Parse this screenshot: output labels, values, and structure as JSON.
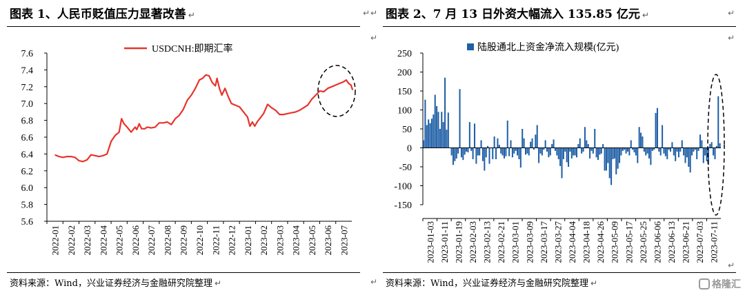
{
  "charts": [
    {
      "title": "图表 1、人民币贬值压力显著改善",
      "source": "资料来源：Wind，兴业证券经济与金融研究院整理",
      "chart_data": {
        "type": "line",
        "legend": "USDCNH:即期汇率",
        "legend_position": "top-center",
        "ylim": [
          5.6,
          7.6
        ],
        "yticks": [
          "5.6",
          "5.8",
          "6.0",
          "6.2",
          "6.4",
          "6.6",
          "6.8",
          "7.0",
          "7.2",
          "7.4",
          "7.6"
        ],
        "xticks": [
          "2022-01",
          "2022-02",
          "2022-03",
          "2022-04",
          "2022-05",
          "2022-06",
          "2022-07",
          "2022-08",
          "2022-09",
          "2022-10",
          "2022-11",
          "2022-12",
          "2023-01",
          "2023-02",
          "2023-03",
          "2023-04",
          "2023-05",
          "2023-06",
          "2023-07"
        ],
        "grid": false,
        "color": "#e8322b",
        "x": [
          0,
          0.25,
          0.5,
          0.75,
          1,
          1.25,
          1.5,
          1.75,
          2,
          2.25,
          2.5,
          2.75,
          3,
          3.25,
          3.5,
          3.75,
          4,
          4.15,
          4.3,
          4.5,
          4.75,
          5,
          5.1,
          5.25,
          5.4,
          5.6,
          5.75,
          6,
          6.25,
          6.5,
          6.75,
          7,
          7.25,
          7.5,
          7.75,
          8,
          8.25,
          8.5,
          8.75,
          9,
          9.2,
          9.4,
          9.6,
          9.8,
          10,
          10.1,
          10.25,
          10.4,
          10.6,
          10.8,
          11,
          11.25,
          11.5,
          11.75,
          12,
          12.15,
          12.3,
          12.45,
          12.6,
          12.8,
          13,
          13.25,
          13.5,
          13.75,
          14,
          14.25,
          14.5,
          14.75,
          15,
          15.25,
          15.5,
          15.75,
          16,
          16.25,
          16.5,
          16.75,
          17,
          17.25,
          17.5,
          17.75,
          18,
          18.15,
          18.3,
          18.45,
          18.55
        ],
        "y": [
          6.39,
          6.37,
          6.36,
          6.37,
          6.37,
          6.36,
          6.32,
          6.31,
          6.33,
          6.39,
          6.38,
          6.37,
          6.38,
          6.4,
          6.55,
          6.62,
          6.66,
          6.82,
          6.76,
          6.72,
          6.66,
          6.72,
          6.69,
          6.76,
          6.7,
          6.7,
          6.72,
          6.71,
          6.72,
          6.77,
          6.77,
          6.78,
          6.75,
          6.82,
          6.86,
          6.93,
          7.04,
          7.1,
          7.18,
          7.28,
          7.3,
          7.34,
          7.33,
          7.25,
          7.21,
          7.3,
          7.18,
          7.1,
          7.18,
          7.08,
          7.0,
          6.98,
          6.96,
          6.9,
          6.84,
          6.73,
          6.78,
          6.73,
          6.78,
          6.83,
          6.88,
          6.99,
          6.95,
          6.92,
          6.87,
          6.87,
          6.88,
          6.89,
          6.9,
          6.92,
          6.95,
          6.98,
          7.05,
          7.1,
          7.15,
          7.14,
          7.18,
          7.2,
          7.22,
          7.24,
          7.26,
          7.28,
          7.24,
          7.22,
          7.16
        ]
      },
      "annotation": "dashed-ellipse"
    },
    {
      "title": "图表 2、7 月 13 日外资大幅流入 135.85 亿元",
      "source": "资料来源：Wind，兴业证券经济与金融研究院整理",
      "chart_data": {
        "type": "bar",
        "series": [
          {
            "name": "陆股通北上资金净流入规模(亿元)"
          }
        ],
        "legend_position": "top-center",
        "ylim": [
          -150,
          250
        ],
        "yticks": [
          "-150",
          "-100",
          "-50",
          "0",
          "50",
          "100",
          "150",
          "200",
          "250"
        ],
        "xticks": [
          "2023-01-03",
          "2023-01-11",
          "2023-01-19",
          "2023-02-03",
          "2023-02-13",
          "2023-02-21",
          "2023-03-01",
          "2023-03-09",
          "2023-03-17",
          "2023-03-27",
          "2023-04-04",
          "2023-04-18",
          "2023-04-26",
          "2023-05-09",
          "2023-05-17",
          "2023-05-25",
          "2023-06-06",
          "2023-06-13",
          "2023-06-21",
          "2023-07-03",
          "2023-07-11"
        ],
        "grid": false,
        "color": "#1f5fa6",
        "values": [
          20,
          127,
          60,
          75,
          65,
          77,
          88,
          140,
          110,
          95,
          50,
          95,
          68,
          185,
          48,
          93,
          0,
          -20,
          -45,
          -35,
          -28,
          -15,
          155,
          -25,
          -32,
          -18,
          -10,
          -12,
          68,
          -8,
          -30,
          64,
          -42,
          -20,
          -20,
          20,
          -35,
          -60,
          -25,
          5,
          -42,
          0,
          -30,
          30,
          -30,
          25,
          8,
          -15,
          -20,
          -28,
          -22,
          72,
          -22,
          20,
          -25,
          -15,
          -8,
          -20,
          -30,
          -52,
          50,
          25,
          -18,
          -15,
          -20,
          16,
          25,
          -5,
          35,
          60,
          -40,
          -15,
          -20,
          -5,
          20,
          -10,
          -25,
          -20,
          10,
          22,
          -8,
          -20,
          -30,
          -48,
          -80,
          -30,
          -10,
          -38,
          -50,
          -10,
          -28,
          -20,
          -20,
          -25,
          10,
          25,
          -15,
          -10,
          55,
          20,
          10,
          -28,
          -8,
          -15,
          50,
          -25,
          -32,
          -18,
          -15,
          10,
          -60,
          -60,
          -40,
          -80,
          -98,
          -30,
          -28,
          -70,
          -55,
          -40,
          -20,
          -8,
          -5,
          -15,
          -10,
          -20,
          20,
          -5,
          -12,
          -20,
          -40,
          55,
          40,
          30,
          -10,
          -20,
          -15,
          -28,
          -45,
          -8,
          -5,
          92,
          105,
          -10,
          -20,
          60,
          -15,
          -22,
          -30,
          -5,
          -10,
          15,
          -20,
          -35,
          -10,
          -25,
          -10,
          20,
          -20,
          -40,
          -25,
          -50,
          -65,
          -20,
          -10,
          -5,
          -30,
          -8,
          35,
          20,
          -40,
          -20,
          -35,
          -45,
          10,
          15,
          -20,
          -30,
          5,
          136,
          12
        ]
      },
      "annotation": "dashed-ellipse"
    }
  ],
  "watermark": "格隆汇",
  "return_mark": "↵"
}
